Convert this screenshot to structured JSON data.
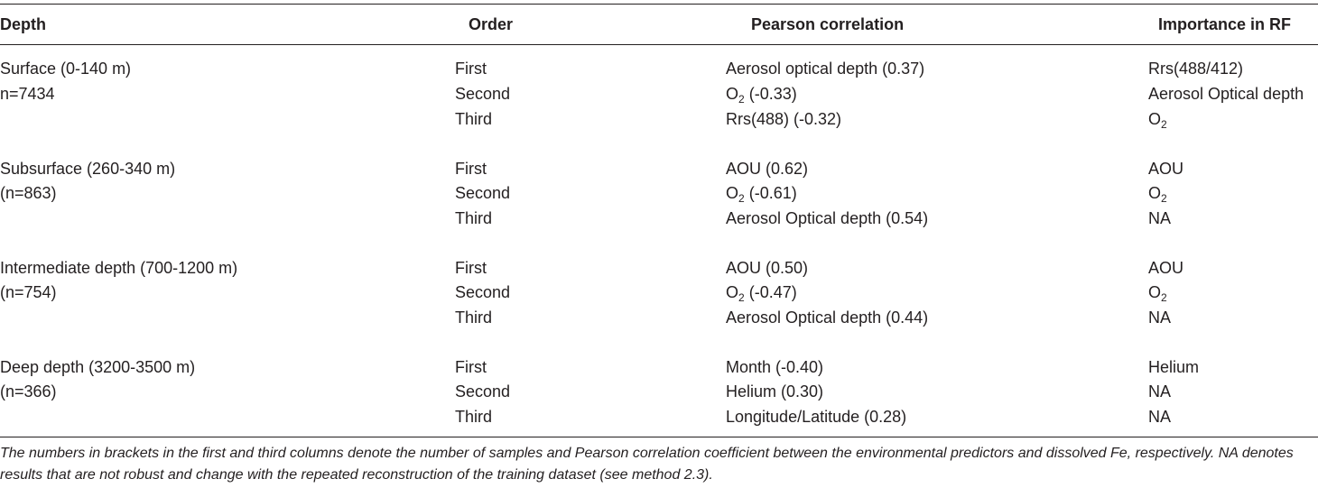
{
  "table": {
    "headers": {
      "depth": "Depth",
      "order": "Order",
      "pearson": "Pearson correlation",
      "importance": "Importance in RF"
    },
    "groups": [
      {
        "depth_line1": "Surface (0-140 m)",
        "depth_line2": "n=7434",
        "rows": [
          {
            "order": "First",
            "pearson": "Aerosol optical depth (0.37)",
            "importance": "Rrs(488/412)"
          },
          {
            "order": "Second",
            "pearson_pre": "O",
            "pearson_sub": "2",
            "pearson_post": " (-0.33)",
            "importance": "Aerosol Optical depth"
          },
          {
            "order": "Third",
            "pearson": "Rrs(488) (-0.32)",
            "importance_pre": "O",
            "importance_sub": "2"
          }
        ]
      },
      {
        "depth_line1": "Subsurface (260-340 m)",
        "depth_line2": "(n=863)",
        "rows": [
          {
            "order": "First",
            "pearson": "AOU (0.62)",
            "importance": "AOU"
          },
          {
            "order": "Second",
            "pearson_pre": "O",
            "pearson_sub": "2",
            "pearson_post": " (-0.61)",
            "importance_pre": "O",
            "importance_sub": "2"
          },
          {
            "order": "Third",
            "pearson": "Aerosol Optical depth (0.54)",
            "importance": "NA"
          }
        ]
      },
      {
        "depth_line1": "Intermediate depth (700-1200 m)",
        "depth_line2": "(n=754)",
        "rows": [
          {
            "order": "First",
            "pearson": "AOU (0.50)",
            "importance": "AOU"
          },
          {
            "order": "Second",
            "pearson_pre": "O",
            "pearson_sub": "2",
            "pearson_post": " (-0.47)",
            "importance_pre": "O",
            "importance_sub": "2"
          },
          {
            "order": "Third",
            "pearson": "Aerosol Optical depth (0.44)",
            "importance": "NA"
          }
        ]
      },
      {
        "depth_line1": "Deep depth (3200-3500 m)",
        "depth_line2": "(n=366)",
        "rows": [
          {
            "order": "First",
            "pearson": "Month (-0.40)",
            "importance": "Helium"
          },
          {
            "order": "Second",
            "pearson": "Helium (0.30)",
            "importance": "NA"
          },
          {
            "order": "Third",
            "pearson": "Longitude/Latitude (0.28)",
            "importance": "NA"
          }
        ]
      }
    ],
    "footnote": "The numbers in brackets in the first and third columns denote the number of samples and Pearson correlation coefficient between the environmental predictors and dissolved Fe, respectively. NA denotes results that are not robust and change with the repeated reconstruction of the training dataset (see method 2.3)."
  }
}
